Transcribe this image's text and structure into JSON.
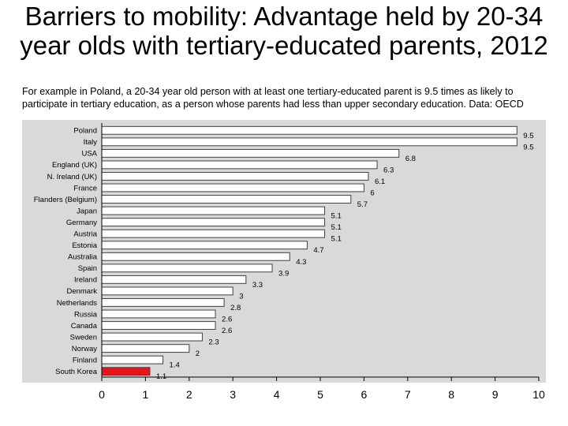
{
  "slide": {
    "title": "Barriers to mobility:  Advantage held by 20-34 year olds with tertiary-educated parents, 2012",
    "subtitle": "For example in Poland, a 20-34 year old person with at least one tertiary-educated parent is 9.5 times as likely to participate in tertiary education, as a person whose parents had less than upper secondary education. Data: OECD"
  },
  "chart_data": {
    "type": "bar",
    "orientation": "horizontal",
    "categories": [
      "Poland",
      "Italy",
      "USA",
      "England (UK)",
      "N. Ireland (UK)",
      "France",
      "Flanders (Belgium)",
      "Japan",
      "Germany",
      "Austria",
      "Estonia",
      "Australia",
      "Spain",
      "Ireland",
      "Denmark",
      "Netherlands",
      "Russia",
      "Canada",
      "Sweden",
      "Norway",
      "Finland",
      "South Korea"
    ],
    "values": [
      9.5,
      9.5,
      6.8,
      6.3,
      6.1,
      6,
      5.7,
      5.1,
      5.1,
      5.1,
      4.7,
      4.3,
      3.9,
      3.3,
      3,
      2.8,
      2.6,
      2.6,
      2.3,
      2,
      1.4,
      1.1
    ],
    "value_labels": [
      "9.5",
      "9.5",
      "6.8",
      "6.3",
      "6.1",
      "6",
      "5.7",
      "5.1",
      "5.1",
      "5.1",
      "4.7",
      "4.3",
      "3.9",
      "3.3",
      "3",
      "2.8",
      "2.6",
      "2.6",
      "2.3",
      "2",
      "1.4",
      "1.1"
    ],
    "highlight": "South Korea",
    "xlim": [
      0,
      10
    ],
    "xticks": [
      "0",
      "1",
      "2",
      "3",
      "4",
      "5",
      "6",
      "7",
      "8",
      "9",
      "10"
    ],
    "grid": false,
    "legend": "none",
    "colors": {
      "bar": "#ffffff",
      "bar_edge": "#404040",
      "highlight_bar": "#e8131b",
      "plot_background": "#d9d9d9",
      "axis": "#000000"
    }
  }
}
